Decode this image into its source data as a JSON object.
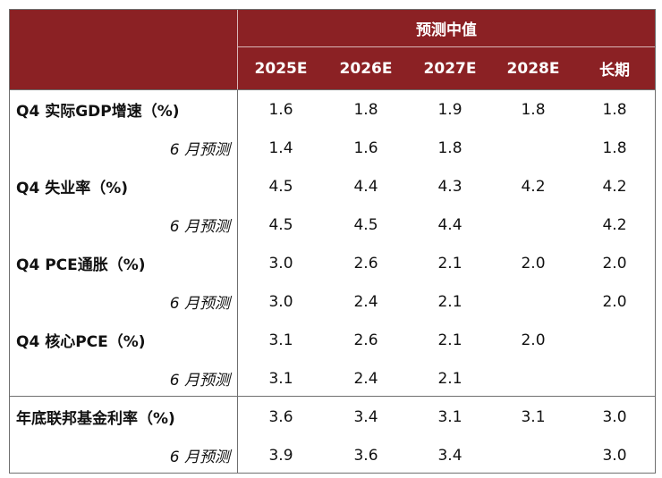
{
  "header": {
    "group_label": "预测中值",
    "columns": [
      "2025E",
      "2026E",
      "2027E",
      "2028E",
      "长期"
    ]
  },
  "rows": [
    {
      "label": "Q4 实际GDP增速（%)",
      "kind": "main",
      "values": [
        "1.6",
        "1.8",
        "1.9",
        "1.8",
        "1.8"
      ]
    },
    {
      "label": "6 月预测",
      "kind": "sub",
      "values": [
        "1.4",
        "1.6",
        "1.8",
        "",
        "1.8"
      ]
    },
    {
      "label": "Q4 失业率（%)",
      "kind": "main",
      "values": [
        "4.5",
        "4.4",
        "4.3",
        "4.2",
        "4.2"
      ]
    },
    {
      "label": "6 月预测",
      "kind": "sub",
      "values": [
        "4.5",
        "4.5",
        "4.4",
        "",
        "4.2"
      ]
    },
    {
      "label": "Q4 PCE通胀（%)",
      "kind": "main",
      "values": [
        "3.0",
        "2.6",
        "2.1",
        "2.0",
        "2.0"
      ]
    },
    {
      "label": "6 月预测",
      "kind": "sub",
      "values": [
        "3.0",
        "2.4",
        "2.1",
        "",
        "2.0"
      ]
    },
    {
      "label": "Q4 核心PCE（%)",
      "kind": "main",
      "values": [
        "3.1",
        "2.6",
        "2.1",
        "2.0",
        ""
      ]
    },
    {
      "label": "6 月预测",
      "kind": "sub",
      "values": [
        "3.1",
        "2.4",
        "2.1",
        "",
        ""
      ]
    },
    {
      "label": "年底联邦基金利率（%)",
      "kind": "main",
      "values": [
        "3.6",
        "3.4",
        "3.1",
        "3.1",
        "3.0"
      ]
    },
    {
      "label": "6 月预测",
      "kind": "sub",
      "values": [
        "3.9",
        "3.6",
        "3.4",
        "",
        "3.0"
      ]
    }
  ]
}
